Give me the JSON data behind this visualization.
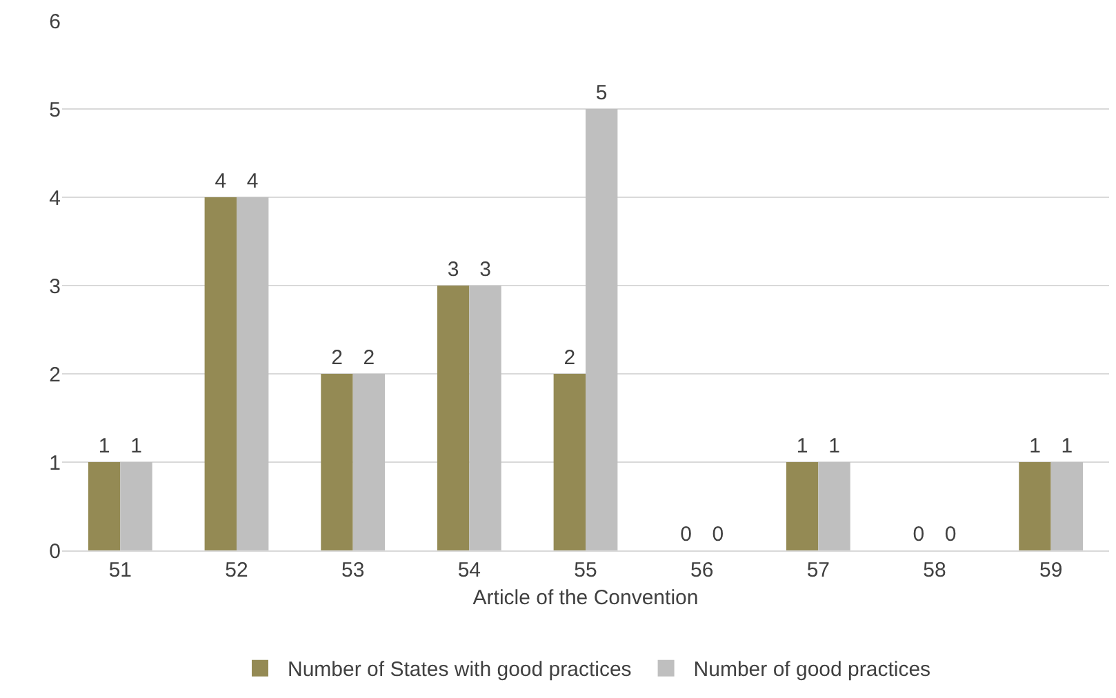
{
  "chart_data": {
    "type": "bar",
    "xlabel": "Article of the Convention",
    "categories": [
      "51",
      "52",
      "53",
      "54",
      "55",
      "56",
      "57",
      "58",
      "59"
    ],
    "series": [
      {
        "name": "Number of States with good practices",
        "color": "#948a54",
        "values": [
          1,
          4,
          2,
          3,
          2,
          0,
          1,
          0,
          1
        ]
      },
      {
        "name": "Number of good practices",
        "color": "#bfbfbf",
        "values": [
          1,
          4,
          2,
          3,
          5,
          0,
          1,
          0,
          1
        ]
      }
    ],
    "ylim": [
      0,
      6
    ],
    "yticks": [
      0,
      1,
      2,
      3,
      4,
      5,
      6
    ],
    "grid": "y",
    "legend": "bottom",
    "data_labels": true
  }
}
